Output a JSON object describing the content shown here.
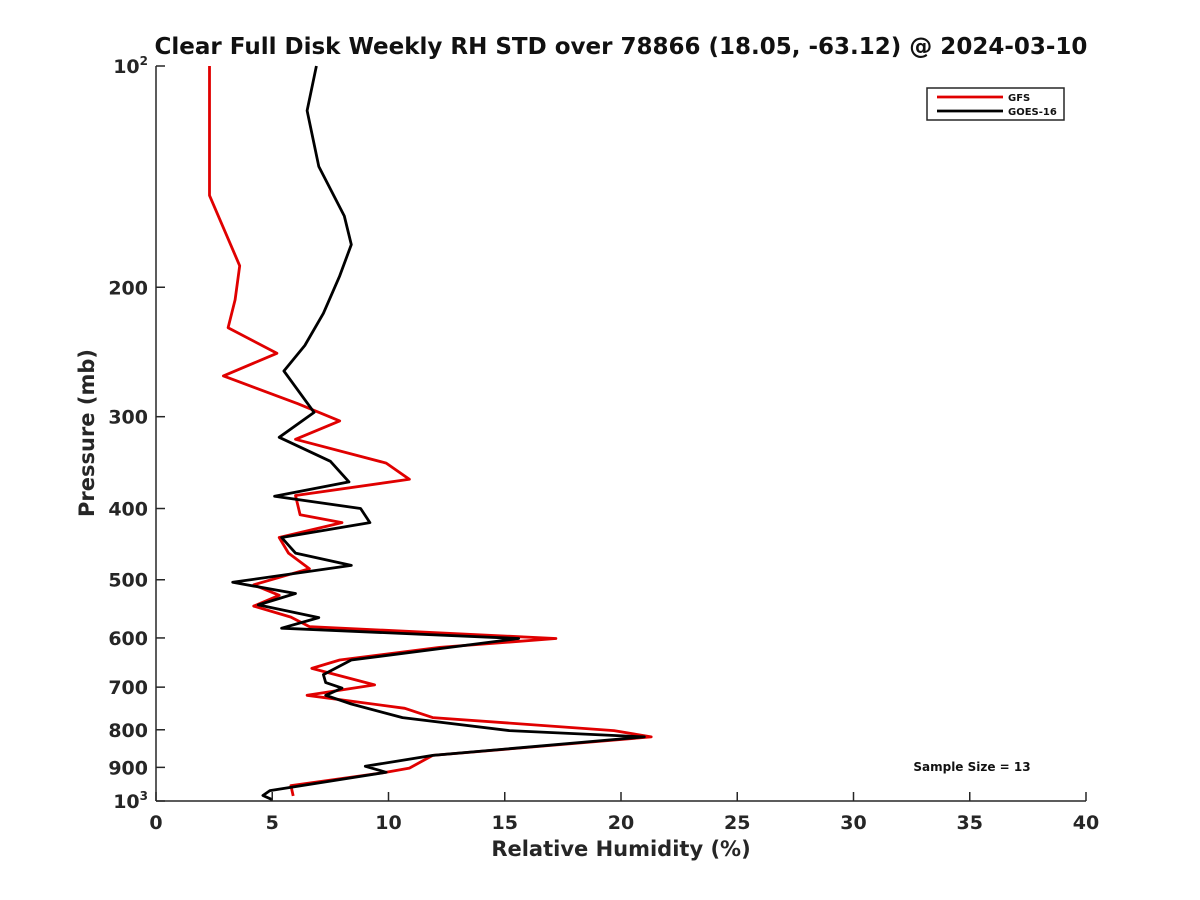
{
  "chart_data": {
    "type": "line",
    "title": "Clear Full Disk Weekly RH STD over 78866 (18.05, -63.12) @ 2024-03-10",
    "xlabel": "Relative Humidity (%)",
    "ylabel": "Pressure (mb)",
    "xlim": [
      0,
      40
    ],
    "ylim": [
      1000,
      100
    ],
    "y_scale": "log",
    "y_reversed": true,
    "x_ticks": [
      "0",
      "5",
      "10",
      "15",
      "20",
      "25",
      "30",
      "35",
      "40"
    ],
    "x_tick_values": [
      0,
      5,
      10,
      15,
      20,
      25,
      30,
      35,
      40
    ],
    "y_ticks": [
      {
        "value": 100,
        "base": "10",
        "sup": "2"
      },
      {
        "value": 200,
        "label": "200"
      },
      {
        "value": 300,
        "label": "300"
      },
      {
        "value": 400,
        "label": "400"
      },
      {
        "value": 500,
        "label": "500"
      },
      {
        "value": 600,
        "label": "600"
      },
      {
        "value": 700,
        "label": "700"
      },
      {
        "value": 800,
        "label": "800"
      },
      {
        "value": 900,
        "label": "900"
      },
      {
        "value": 1000,
        "base": "10",
        "sup": "3"
      }
    ],
    "grid": false,
    "legend_position": "top-right",
    "annotation": "Sample Size = 13",
    "series": [
      {
        "name": "GFS",
        "color": "#e00000",
        "points": [
          [
            2.3,
            100
          ],
          [
            2.3,
            150
          ],
          [
            3.6,
            187
          ],
          [
            3.4,
            208
          ],
          [
            3.1,
            227
          ],
          [
            5.2,
            246
          ],
          [
            2.9,
            264
          ],
          [
            6.1,
            288
          ],
          [
            7.9,
            304
          ],
          [
            6.0,
            322
          ],
          [
            9.9,
            347
          ],
          [
            10.9,
            365
          ],
          [
            6.0,
            384
          ],
          [
            6.2,
            408
          ],
          [
            8.0,
            418
          ],
          [
            5.3,
            438
          ],
          [
            5.7,
            460
          ],
          [
            6.6,
            483
          ],
          [
            4.2,
            508
          ],
          [
            5.3,
            525
          ],
          [
            4.2,
            543
          ],
          [
            5.8,
            562
          ],
          [
            6.6,
            579
          ],
          [
            17.2,
            601
          ],
          [
            12.2,
            618
          ],
          [
            7.9,
            643
          ],
          [
            6.7,
            660
          ],
          [
            9.4,
            695
          ],
          [
            6.5,
            718
          ],
          [
            10.7,
            748
          ],
          [
            11.9,
            770
          ],
          [
            19.7,
            802
          ],
          [
            21.3,
            818
          ],
          [
            11.9,
            867
          ],
          [
            10.9,
            902
          ],
          [
            9.9,
            914
          ],
          [
            5.8,
            953
          ],
          [
            5.9,
            984
          ]
        ]
      },
      {
        "name": "GOES-16",
        "color": "#000000",
        "points": [
          [
            6.9,
            100
          ],
          [
            6.5,
            115
          ],
          [
            7.0,
            137
          ],
          [
            8.1,
            160
          ],
          [
            8.4,
            175
          ],
          [
            7.9,
            193
          ],
          [
            7.2,
            217
          ],
          [
            6.4,
            240
          ],
          [
            5.5,
            260
          ],
          [
            6.8,
            296
          ],
          [
            5.3,
            320
          ],
          [
            7.5,
            345
          ],
          [
            8.3,
            368
          ],
          [
            5.1,
            385
          ],
          [
            8.8,
            400
          ],
          [
            9.2,
            418
          ],
          [
            5.4,
            438
          ],
          [
            6.0,
            460
          ],
          [
            8.4,
            478
          ],
          [
            3.3,
            504
          ],
          [
            6.0,
            522
          ],
          [
            4.4,
            541
          ],
          [
            7.0,
            563
          ],
          [
            5.4,
            582
          ],
          [
            15.6,
            601
          ],
          [
            8.4,
            643
          ],
          [
            7.2,
            673
          ],
          [
            7.3,
            690
          ],
          [
            8.0,
            702
          ],
          [
            7.3,
            718
          ],
          [
            8.4,
            738
          ],
          [
            10.6,
            770
          ],
          [
            15.2,
            802
          ],
          [
            21.0,
            818
          ],
          [
            11.9,
            867
          ],
          [
            9.0,
            897
          ],
          [
            9.9,
            914
          ],
          [
            4.9,
            968
          ],
          [
            4.6,
            983
          ],
          [
            5.0,
            996
          ]
        ]
      }
    ]
  }
}
